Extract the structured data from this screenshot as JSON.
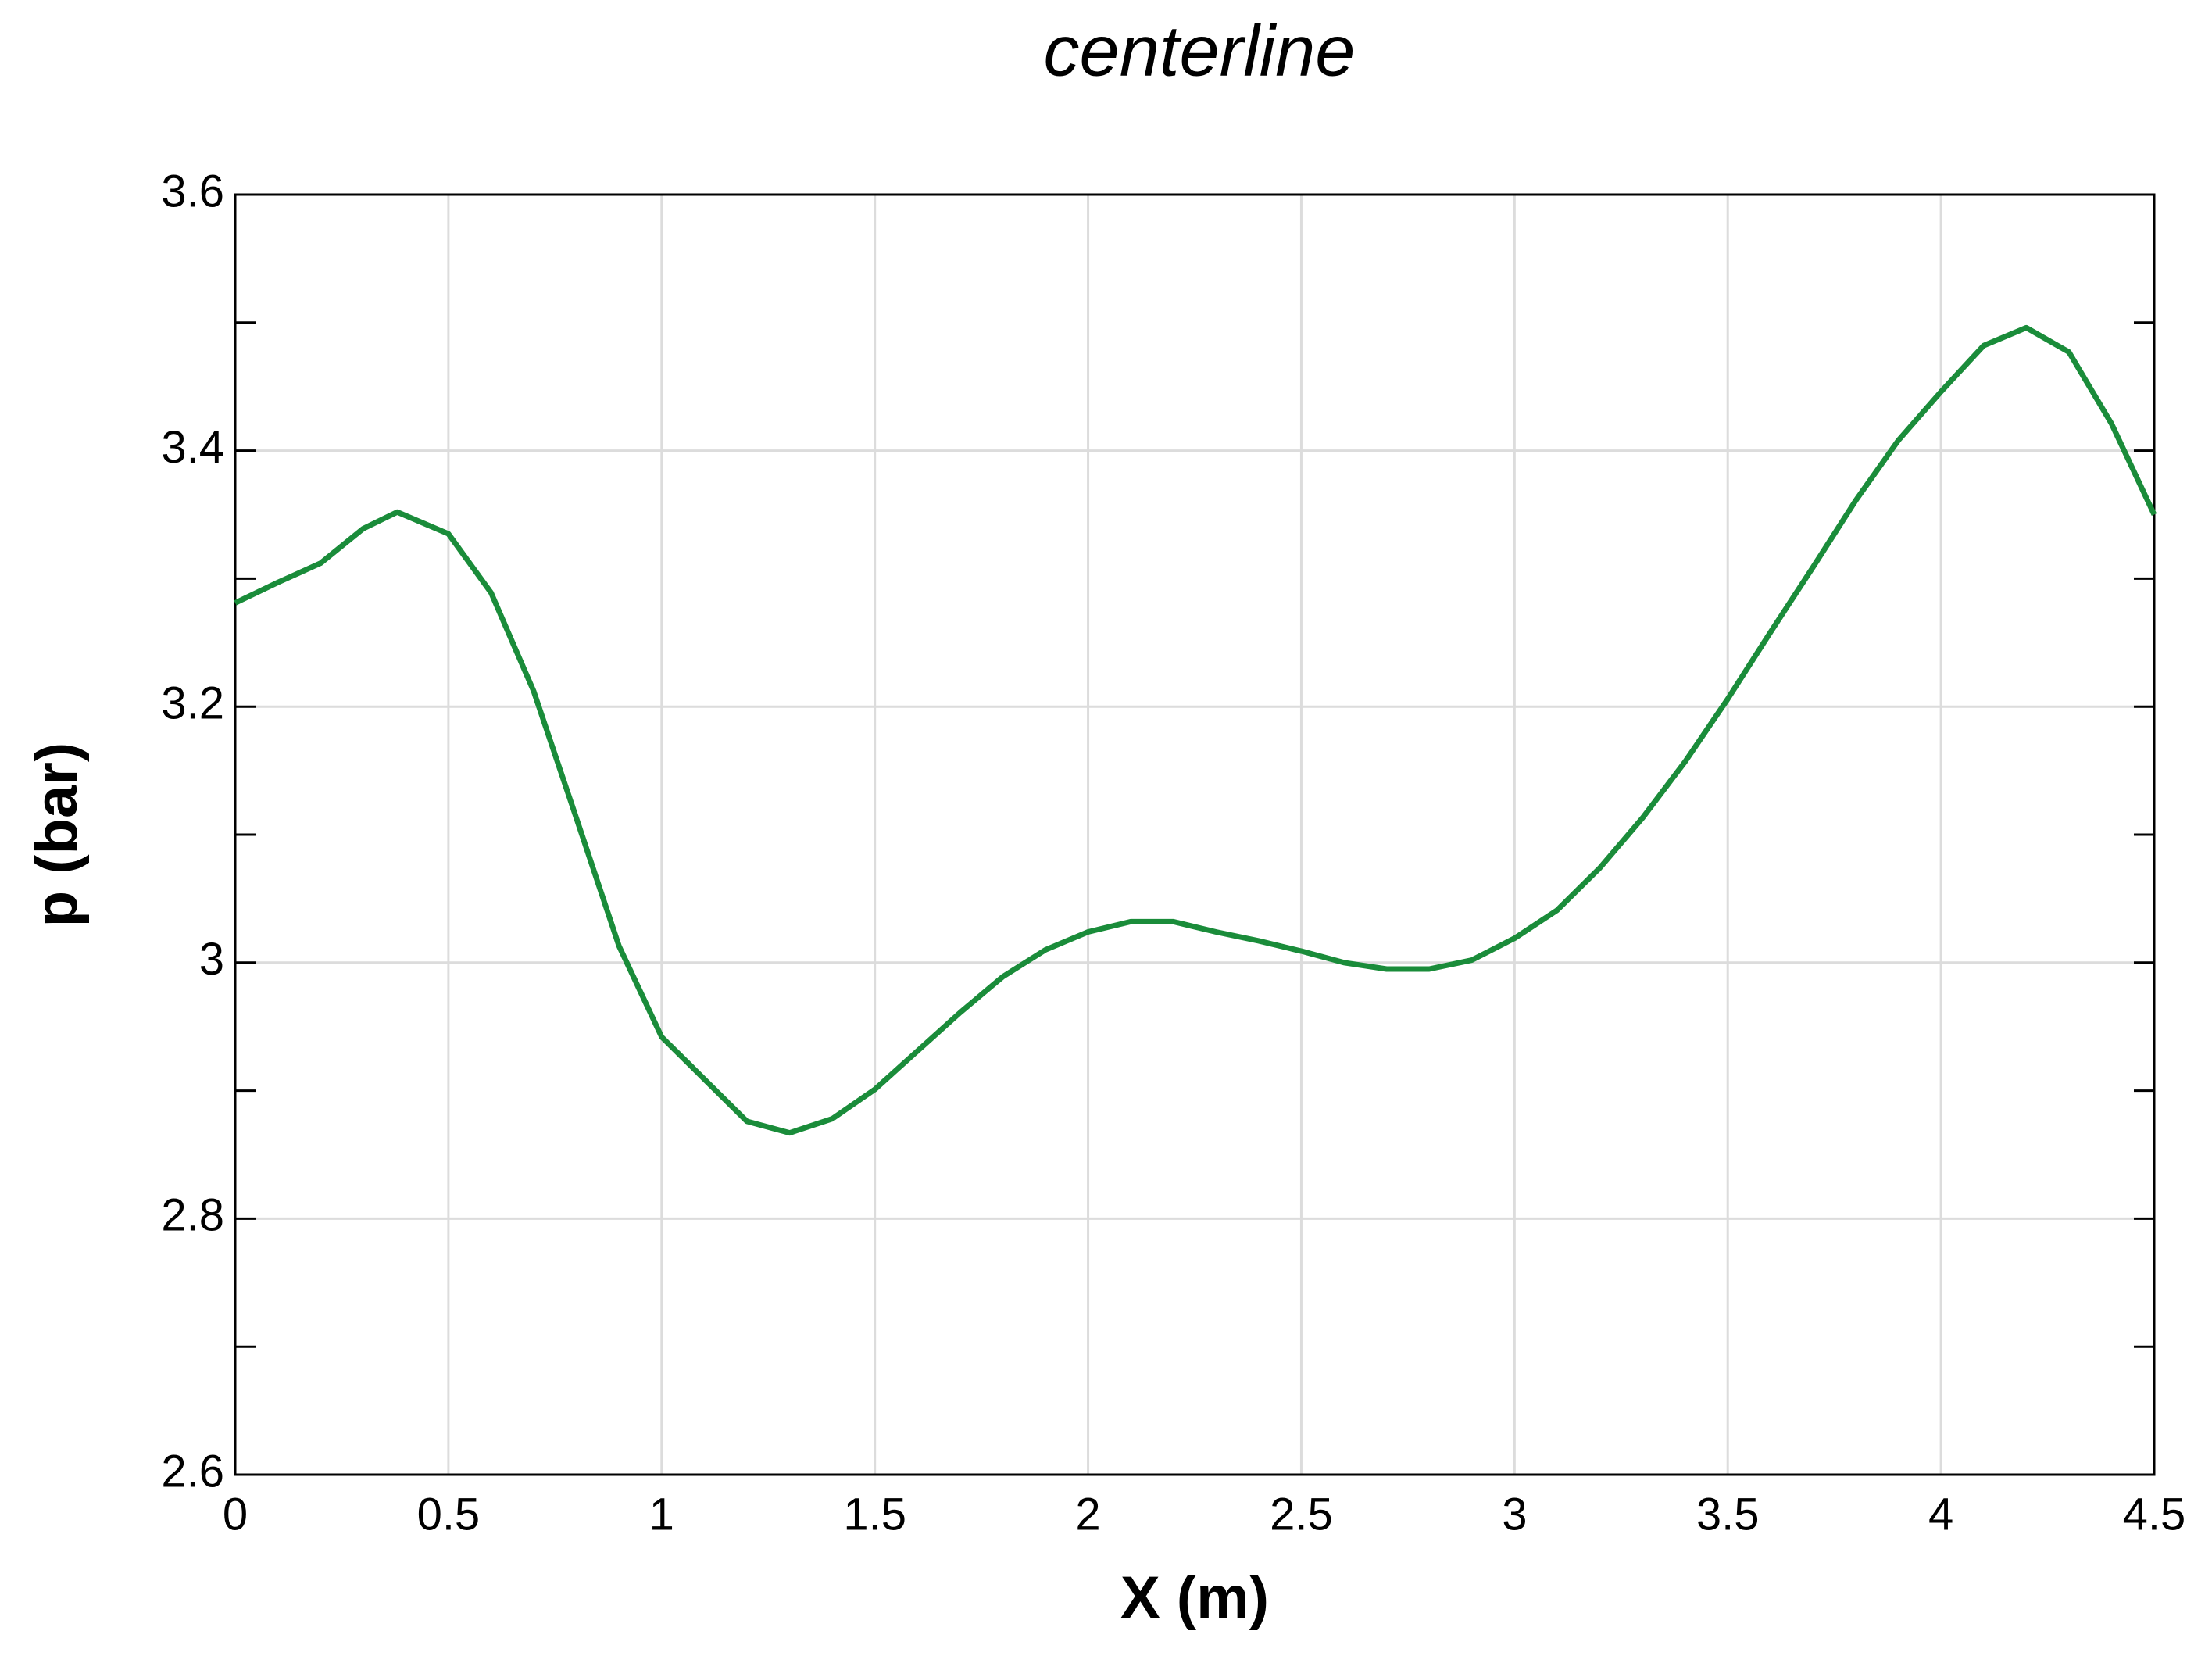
{
  "chart_data": {
    "type": "line",
    "title": "centerline",
    "x_label": "X (m)",
    "y_label": "p (bar)",
    "x": [
      0,
      0.1,
      0.2,
      0.3,
      0.38,
      0.5,
      0.6,
      0.7,
      0.8,
      0.9,
      1.0,
      1.1,
      1.2,
      1.3,
      1.4,
      1.5,
      1.6,
      1.7,
      1.8,
      1.9,
      2.0,
      2.1,
      2.2,
      2.3,
      2.4,
      2.5,
      2.6,
      2.7,
      2.8,
      2.9,
      3.0,
      3.1,
      3.2,
      3.3,
      3.4,
      3.5,
      3.6,
      3.7,
      3.8,
      3.9,
      4.0,
      4.1,
      4.2,
      4.3,
      4.4,
      4.5
    ],
    "series": [
      {
        "color": "#1a8c3a",
        "values": [
          3.281,
          3.297,
          3.312,
          3.339,
          3.352,
          3.335,
          3.289,
          3.212,
          3.113,
          3.013,
          2.942,
          2.909,
          2.876,
          2.867,
          2.878,
          2.901,
          2.931,
          2.961,
          2.989,
          3.01,
          3.024,
          3.032,
          3.032,
          3.024,
          3.017,
          3.009,
          3.0,
          2.995,
          2.995,
          3.002,
          3.019,
          3.041,
          3.074,
          3.113,
          3.157,
          3.206,
          3.258,
          3.309,
          3.361,
          3.408,
          3.446,
          3.482,
          3.496,
          3.477,
          3.421,
          3.35
        ]
      }
    ],
    "xlim": [
      0,
      4.5
    ],
    "xticks": [
      0,
      0.5,
      1,
      1.5,
      2,
      2.5,
      3,
      3.5,
      4,
      4.5
    ],
    "ylim": [
      2.6,
      3.6
    ],
    "yticks": [
      2.6,
      2.8,
      3,
      3.2,
      3.4,
      3.6
    ],
    "y_minor_ticks": [
      2.7,
      2.9,
      3.1,
      3.3,
      3.5
    ],
    "grid": true
  }
}
